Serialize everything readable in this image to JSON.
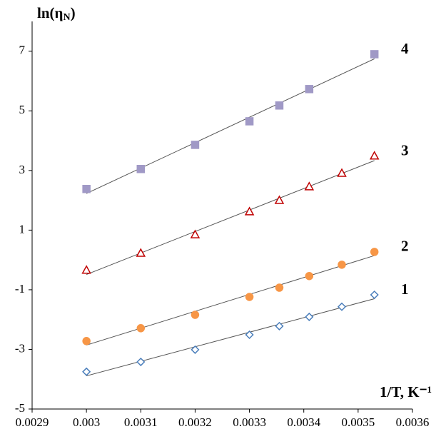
{
  "chart_data": {
    "type": "scatter",
    "y_label": "ln(ηN)",
    "x_label": "1/T, K⁻¹",
    "xlim": [
      0.0029,
      0.0036
    ],
    "xticks": [
      0.0029,
      0.003,
      0.0031,
      0.0032,
      0.0033,
      0.0034,
      0.0035,
      0.0036
    ],
    "ylim": [
      -5,
      8
    ],
    "yticks": [
      -5,
      -3,
      -1,
      1,
      3,
      5,
      7
    ],
    "trendline": true,
    "series": [
      {
        "name": "1",
        "color": "#4a7ebb",
        "marker": "diamond",
        "filled": false,
        "x": [
          0.003,
          0.0031,
          0.0032,
          0.0033,
          0.003355,
          0.00341,
          0.00347,
          0.00353
        ],
        "values": [
          -3.75,
          -3.42,
          -3.01,
          -2.51,
          -2.22,
          -1.91,
          -1.57,
          -1.17
        ]
      },
      {
        "name": "2",
        "color": "#f79646",
        "marker": "circle",
        "filled": true,
        "x": [
          0.003,
          0.0031,
          0.0032,
          0.0033,
          0.003355,
          0.00341,
          0.00347,
          0.00353
        ],
        "values": [
          -2.72,
          -2.29,
          -1.84,
          -1.24,
          -0.93,
          -0.54,
          -0.16,
          0.27
        ]
      },
      {
        "name": "3",
        "color": "#c00000",
        "marker": "triangle",
        "filled": false,
        "x": [
          0.003,
          0.0031,
          0.0032,
          0.0033,
          0.003355,
          0.00341,
          0.00347,
          0.00353
        ],
        "values": [
          -0.35,
          0.22,
          0.84,
          1.61,
          1.99,
          2.45,
          2.9,
          3.48
        ]
      },
      {
        "name": "4",
        "color": "#a099c6",
        "marker": "square",
        "filled": true,
        "x": [
          0.003,
          0.0031,
          0.0032,
          0.0033,
          0.003355,
          0.00341,
          0.00353
        ],
        "values": [
          2.38,
          3.05,
          3.86,
          4.65,
          5.18,
          5.73,
          6.9
        ]
      }
    ]
  }
}
